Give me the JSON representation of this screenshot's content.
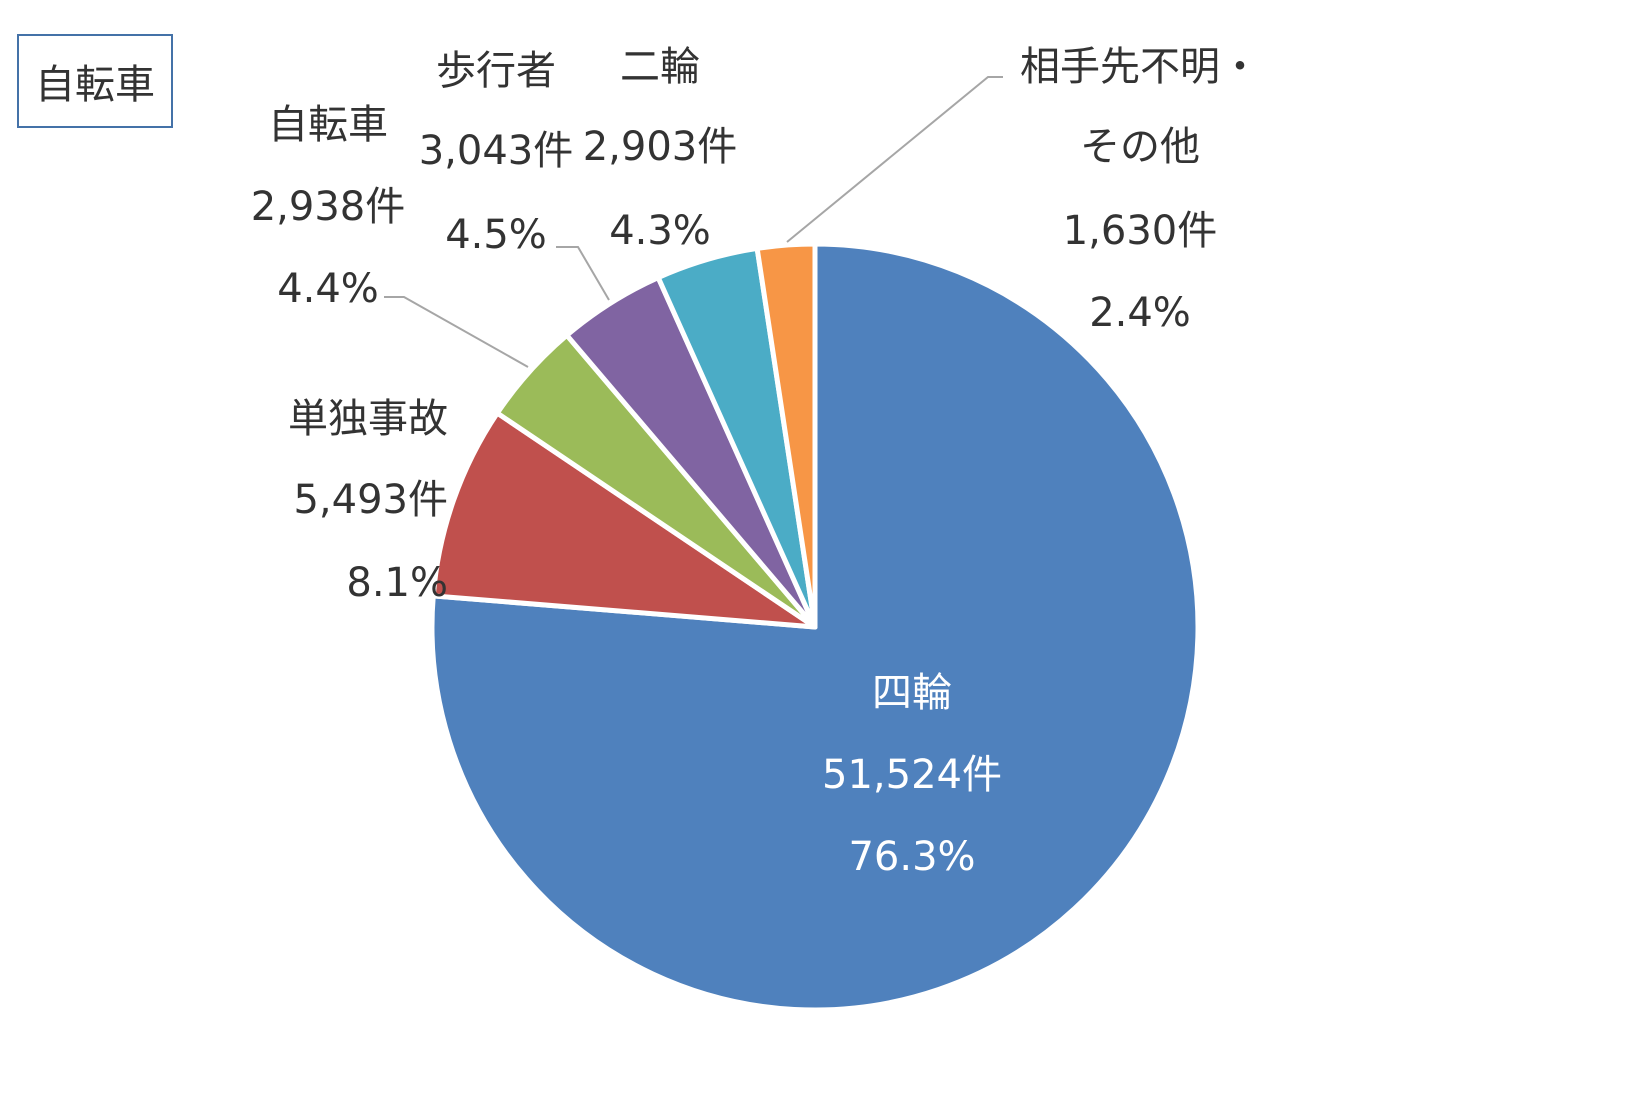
{
  "chart_title": "自転車",
  "chart_data": {
    "type": "pie",
    "title": "自転車",
    "start_angle_deg": 0,
    "direction": "clockwise",
    "slices": [
      {
        "name": "四輪",
        "count": "51,524件",
        "percent": "76.3%",
        "value": 51524,
        "color": "#4f81bd"
      },
      {
        "name": "単独事故",
        "count": "5,493件",
        "percent": "8.1%",
        "value": 5493,
        "color": "#c0504d"
      },
      {
        "name": "自転車",
        "count": "2,938件",
        "percent": "4.4%",
        "value": 2938,
        "color": "#9bbb59"
      },
      {
        "name": "歩行者",
        "count": "3,043件",
        "percent": "4.5%",
        "value": 3043,
        "color": "#8064a2"
      },
      {
        "name": "二輪",
        "count": "2,903件",
        "percent": "4.3%",
        "value": 2903,
        "color": "#4bacc6"
      },
      {
        "name": "相手先不明・",
        "name2": "その他",
        "count": "1,630件",
        "percent": "2.4%",
        "value": 1630,
        "color": "#f79646"
      }
    ]
  }
}
